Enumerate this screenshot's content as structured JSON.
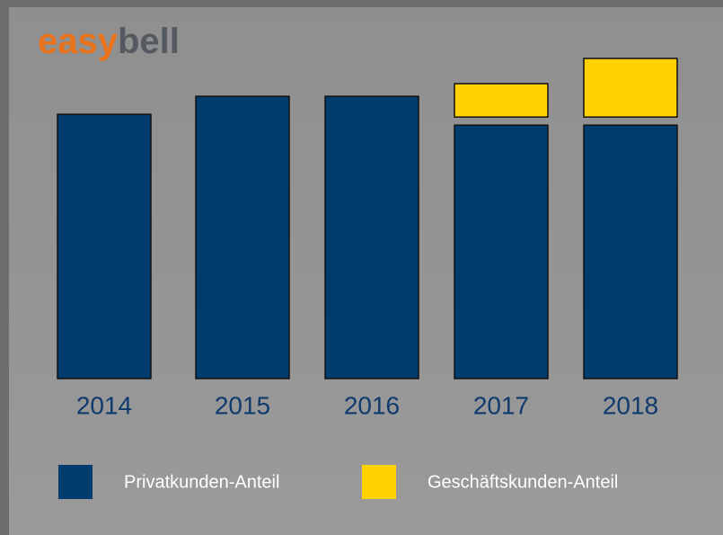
{
  "logo": {
    "part1": "easy",
    "part2": "bell"
  },
  "chart_data": {
    "type": "bar",
    "categories": [
      "2014",
      "2015",
      "2016",
      "2017",
      "2018"
    ],
    "series": [
      {
        "name": "Privatkunden-Anteil",
        "color": "#003d6e",
        "values": [
          293,
          313,
          313,
          281,
          281
        ]
      },
      {
        "name": "Geschäftskunden-Anteil",
        "color": "#ffd200",
        "values": [
          null,
          null,
          null,
          37,
          65
        ]
      }
    ],
    "stacked": true
  }
}
